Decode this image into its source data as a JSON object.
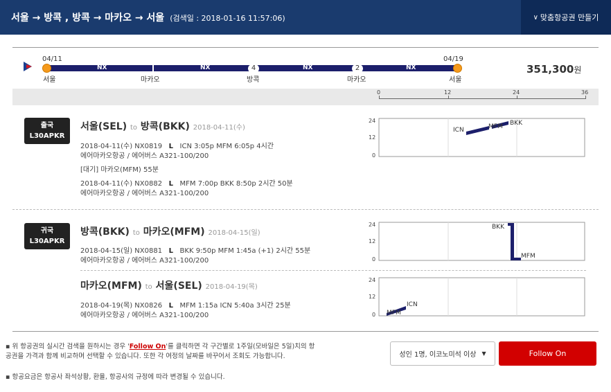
{
  "header": {
    "route": "서울 → 방콕 , 방콕 → 마카오 → 서울",
    "search_date": "(검색일 : 2018-01-16 11:57:06)",
    "custom_button_label": "맞춤항공권 만들기"
  },
  "summary": {
    "price": "351,300",
    "currency": "원",
    "timeline": {
      "start_date": "04/11",
      "end_date": "04/19",
      "airline_codes": [
        "NX",
        "NX",
        "NX",
        "NX"
      ],
      "cities": [
        "서울",
        "마카오",
        "방콕",
        "마카오",
        "서울"
      ],
      "stay_nights": [
        "4",
        "2"
      ]
    }
  },
  "axis": {
    "ticks": [
      "0",
      "12",
      "24",
      "36"
    ]
  },
  "outbound": {
    "badge_line1": "출국",
    "badge_line2": "L30APKR",
    "title_from": "서울(SEL)",
    "title_to_word": "to",
    "title_to": "방콕(BKK)",
    "title_date": "2018-04-11(수)",
    "flight1": {
      "line1_prefix": "2018-04-11(수)   NX0819",
      "class": "L",
      "line1_suffix": "ICN 3:05p MFM 6:05p   4시간",
      "line2": "에어마카오항공 / 에어버스 A321-100/200"
    },
    "layover": "[대기] 마카오(MFM)   55분",
    "flight2": {
      "line1_prefix": "2018-04-11(수)   NX0882",
      "class": "L",
      "line1_suffix": "MFM 7:00p BKK 8:50p   2시간 50분",
      "line2": "에어마카오항공 / 에어버스 A321-100/200"
    },
    "chart": {
      "yticks": [
        "24",
        "12",
        "0"
      ],
      "labels": [
        "ICN",
        "MFM",
        "BKK"
      ]
    }
  },
  "return": {
    "badge_line1": "귀국",
    "badge_line2": "L30APKR",
    "leg1": {
      "title_from": "방콕(BKK)",
      "title_to_word": "to",
      "title_to": "마카오(MFM)",
      "title_date": "2018-04-15(일)",
      "line1_prefix": "2018-04-15(일)   NX0881",
      "class": "L",
      "line1_suffix": "BKK 9:50p MFM 1:45a (+1)   2시간 55분",
      "line2": "에어마카오항공 / 에어버스 A321-100/200",
      "chart": {
        "yticks": [
          "24",
          "12",
          "0"
        ],
        "labels": [
          "BKK",
          "MFM"
        ]
      }
    },
    "leg2": {
      "title_from": "마카오(MFM)",
      "title_to_word": "to",
      "title_to": "서울(SEL)",
      "title_date": "2018-04-19(목)",
      "line1_prefix": "2018-04-19(목)   NX0826",
      "class": "L",
      "line1_suffix": "MFM 1:15a ICN 5:40a   3시간 25분",
      "line2": "에어마카오항공 / 에어버스 A321-100/200",
      "chart": {
        "yticks": [
          "24",
          "12",
          "0"
        ],
        "labels": [
          "MFM",
          "ICN"
        ]
      }
    }
  },
  "footer": {
    "note1_pre": "위 항공권의 실시간 검색을 원하시는 경우 '",
    "note1_link": "Follow On",
    "note1_post": "'를 클릭하면 각 구간별로 1주일(모바일은 5일)치의 항공권을 가격과 함께 비교하며 선택할 수 있습니다. 또한 각 여정의 날짜를 바꾸어서 조회도 가능합니다.",
    "note2": "항공요금은 항공사 좌석상황, 환율, 항공사의 규정에 따라 변경될 수 있습니다.",
    "passenger_select": "성인 1명, 이코노미석 이상",
    "follow_button": "Follow On"
  },
  "colors": {
    "header_bg": "#1a3b6e",
    "custom_btn_bg": "#0e2a57",
    "bar": "#1c1f6b",
    "dot": "#f59a1c",
    "follow_btn": "#d20000"
  }
}
